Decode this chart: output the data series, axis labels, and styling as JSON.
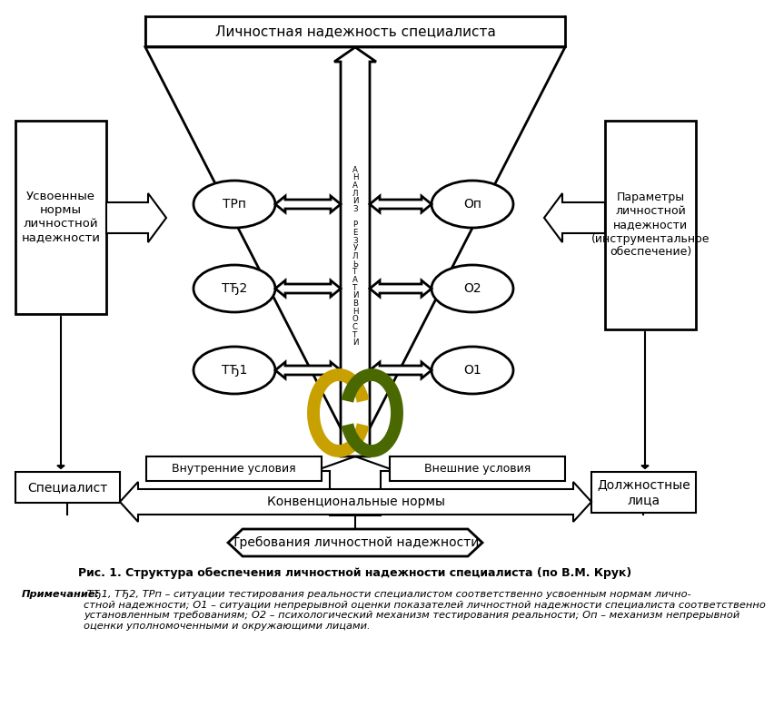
{
  "title_top": "Личностная надежность специалиста",
  "label_left": "Усвоенные\nнормы\nличностной\nнадежности",
  "label_right": "Параметры\nличностной\nнадежности\n(инструментальное\nобеспечение)",
  "label_bottom_left": "Специалист",
  "label_bottom_right": "Должностные\nлица",
  "label_inner_left": "Внутренние условия",
  "label_inner_right": "Внешние условия",
  "label_konv": "Конвенциональные нормы",
  "label_treb": "Требования личностной надежности",
  "label_analiz": "А\nН\nА\nЛ\nИ\nЗ\n \nР\nЕ\nЗ\nУ\nЛ\nЬ\nТ\nА\nТ\nИ\nВ\nН\nО\nС\nТ\nИ",
  "ellipses_left": [
    "ТРп",
    "ТЂ2",
    "ТЂ1"
  ],
  "ellipses_right": [
    "Оп",
    "О2",
    "О1"
  ],
  "caption": "Рис. 1. Структура обеспечения личностной надежности специалиста (по В.М. Крук)",
  "note_italic": "Примечание",
  "note_colon": ":",
  "note_body": " ТЂ1, ТЂ2, ТРп – ситуации тестирования реальности специалистом соответственно усвоенным нормам лично-\nстной надежности; О1 – ситуации непрерывной оценки показателей личностной надежности специалиста соответственно\nустановленным требованиям; О2 – психологический механизм тестирования реальности; Оп – механизм непрерывной\nоценки уполномоченными и окружающими лицами.",
  "bg_color": "#ffffff",
  "yellow_color": "#c8a000",
  "green_color": "#4a6800"
}
